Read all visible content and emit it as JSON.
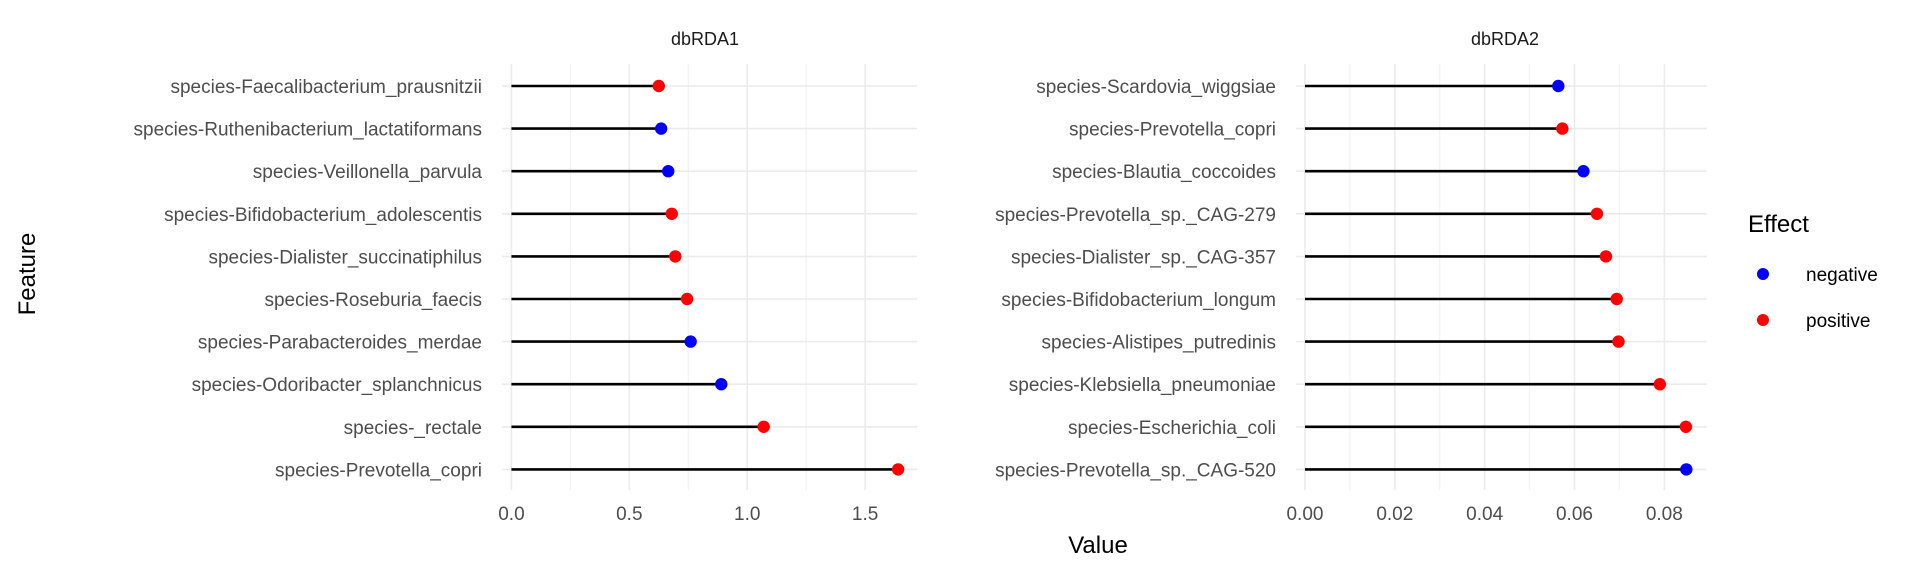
{
  "chart_data": {
    "type": "lollipop",
    "xlabel": "Value",
    "ylabel": "Feature",
    "legend": {
      "title": "Effect",
      "placement": "right",
      "entries": [
        {
          "label": "negative",
          "color": "#0000ff"
        },
        {
          "label": "positive",
          "color": "#ff0000"
        }
      ]
    },
    "grid": true,
    "panels": [
      {
        "title": "dbRDA1",
        "xlim": [
          -0.04,
          1.72
        ],
        "xticks": [
          0.0,
          0.5,
          1.0,
          1.5
        ],
        "xtick_labels": [
          "0.0",
          "0.5",
          "1.0",
          "1.5"
        ],
        "categories": [
          "species-Faecalibacterium_prausnitzii",
          "species-Ruthenibacterium_lactatiformans",
          "species-Veillonella_parvula",
          "species-Bifidobacterium_adolescentis",
          "species-Dialister_succinatiphilus",
          "species-Roseburia_faecis",
          "species-Parabacteroides_merdae",
          "species-Odoribacter_splanchnicus",
          "species-_rectale",
          "species-Prevotella_copri"
        ],
        "values": [
          0.625,
          0.635,
          0.665,
          0.68,
          0.695,
          0.745,
          0.76,
          0.89,
          1.07,
          1.64
        ],
        "effects": [
          "positive",
          "negative",
          "negative",
          "positive",
          "positive",
          "positive",
          "negative",
          "negative",
          "positive",
          "positive"
        ]
      },
      {
        "title": "dbRDA2",
        "xlim": [
          -0.002,
          0.0895
        ],
        "xticks": [
          0.0,
          0.02,
          0.04,
          0.06,
          0.08
        ],
        "xtick_labels": [
          "0.00",
          "0.02",
          "0.04",
          "0.06",
          "0.08"
        ],
        "categories": [
          "species-Scardovia_wiggsiae",
          "species-Prevotella_copri",
          "species-Blautia_coccoides",
          "species-Prevotella_sp._CAG-279",
          "species-Dialister_sp._CAG-357",
          "species-Bifidobacterium_longum",
          "species-Alistipes_putredinis",
          "species-Klebsiella_pneumoniae",
          "species-Escherichia_coli",
          "species-Prevotella_sp._CAG-520"
        ],
        "values": [
          0.0564,
          0.0573,
          0.062,
          0.065,
          0.067,
          0.0694,
          0.0698,
          0.079,
          0.0848,
          0.0849
        ],
        "effects": [
          "negative",
          "positive",
          "negative",
          "positive",
          "positive",
          "positive",
          "positive",
          "positive",
          "positive",
          "negative"
        ]
      }
    ]
  }
}
